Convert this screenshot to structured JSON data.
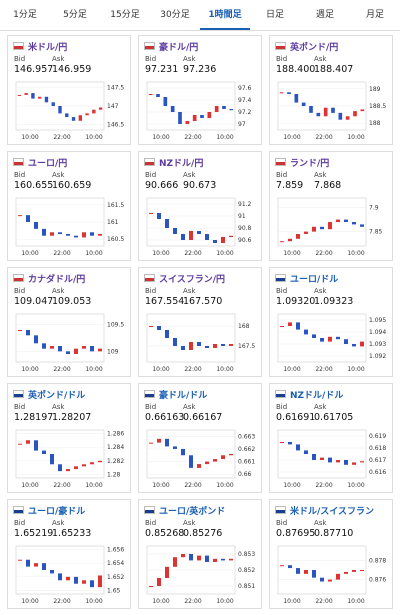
{
  "tabs": [
    "1分足",
    "5分足",
    "15分足",
    "30分足",
    "1時間足",
    "日足",
    "週足",
    "月足"
  ],
  "active_tab": 4,
  "labels": {
    "bid": "Bid",
    "ask": "Ask"
  },
  "x_labels": [
    "10:00",
    "22:00",
    "10:00"
  ],
  "cards": [
    {
      "title": "米ドル/円",
      "bid": "146.957",
      "ask": "146.959",
      "ylim": [
        146.35,
        147.65
      ],
      "yticks": [
        147.5,
        147,
        146.5
      ],
      "closes": [
        147.3,
        147.35,
        147.2,
        147.25,
        147.1,
        147.0,
        146.8,
        146.7,
        146.6,
        146.75,
        146.8,
        146.9,
        146.96
      ]
    },
    {
      "title": "豪ドル/円",
      "bid": "97.231",
      "ask": "97.236",
      "ylim": [
        96.9,
        97.7
      ],
      "yticks": [
        97.6,
        97.4,
        97.2,
        97
      ],
      "closes": [
        97.5,
        97.45,
        97.3,
        97.2,
        97.0,
        97.05,
        97.15,
        97.1,
        97.2,
        97.3,
        97.25,
        97.23
      ]
    },
    {
      "title": "英ポンド/円",
      "bid": "188.400",
      "ask": "188.407",
      "ylim": [
        187.8,
        189.2
      ],
      "yticks": [
        189,
        188.5,
        188
      ],
      "closes": [
        188.9,
        188.85,
        188.6,
        188.5,
        188.3,
        188.2,
        188.45,
        188.3,
        188.1,
        188.2,
        188.35,
        188.4
      ]
    },
    {
      "title": "ユーロ/円",
      "bid": "160.655",
      "ask": "160.659",
      "ylim": [
        160.3,
        161.7
      ],
      "yticks": [
        161.5,
        161,
        160.5
      ],
      "closes": [
        161.2,
        161.0,
        160.8,
        160.6,
        160.7,
        160.65,
        160.6,
        160.55,
        160.7,
        160.6,
        160.65
      ]
    },
    {
      "title": "NZドル/円",
      "bid": "90.666",
      "ask": "90.673",
      "ylim": [
        90.5,
        91.3
      ],
      "yticks": [
        91.2,
        91,
        90.8,
        90.6
      ],
      "closes": [
        91.05,
        90.95,
        90.8,
        90.7,
        90.6,
        90.75,
        90.7,
        90.6,
        90.55,
        90.65,
        90.67
      ]
    },
    {
      "title": "ランド/円",
      "bid": "7.859",
      "ask": "7.868",
      "ylim": [
        7.82,
        7.92
      ],
      "yticks": [
        7.9,
        7.85
      ],
      "closes": [
        7.83,
        7.835,
        7.845,
        7.85,
        7.86,
        7.855,
        7.87,
        7.875,
        7.87,
        7.865,
        7.86
      ]
    },
    {
      "title": "カナダドル/円",
      "bid": "109.047",
      "ask": "109.053",
      "ylim": [
        108.8,
        109.7
      ],
      "yticks": [
        109.5,
        109
      ],
      "closes": [
        109.4,
        109.3,
        109.15,
        109.05,
        109.1,
        109.0,
        108.95,
        109.05,
        109.1,
        109.0,
        109.05
      ]
    },
    {
      "title": "スイスフラン/円",
      "bid": "167.554",
      "ask": "167.570",
      "ylim": [
        167.1,
        168.3
      ],
      "yticks": [
        168,
        167.5
      ],
      "closes": [
        168.0,
        167.9,
        167.7,
        167.5,
        167.4,
        167.6,
        167.5,
        167.45,
        167.55,
        167.5,
        167.55
      ]
    },
    {
      "title": "ユーロ/ドル",
      "bid": "1.09320",
      "ask": "1.09323",
      "ylim": [
        1.0915,
        1.0955
      ],
      "yticks": [
        1.095,
        1.094,
        1.093,
        1.092
      ],
      "closes": [
        1.0945,
        1.0948,
        1.0942,
        1.0938,
        1.0935,
        1.0932,
        1.0936,
        1.0934,
        1.093,
        1.0928,
        1.0932
      ]
    },
    {
      "title": "英ポンド/ドル",
      "bid": "1.28197",
      "ask": "1.28207",
      "ylim": [
        1.2795,
        1.2865
      ],
      "yticks": [
        1.286,
        1.284,
        1.282,
        1.28
      ],
      "closes": [
        1.2845,
        1.285,
        1.2835,
        1.283,
        1.2815,
        1.2805,
        1.2808,
        1.2812,
        1.2815,
        1.2818,
        1.282
      ]
    },
    {
      "title": "豪ドル/ドル",
      "bid": "0.66163",
      "ask": "0.66167",
      "ylim": [
        0.6597,
        0.6635
      ],
      "yticks": [
        0.663,
        0.662,
        0.661,
        0.66
      ],
      "closes": [
        0.6625,
        0.6628,
        0.6622,
        0.662,
        0.6615,
        0.6605,
        0.6608,
        0.661,
        0.6612,
        0.6615,
        0.6616
      ]
    },
    {
      "title": "NZドル/ドル",
      "bid": "0.61691",
      "ask": "0.61705",
      "ylim": [
        0.6155,
        0.6195
      ],
      "yticks": [
        0.619,
        0.618,
        0.617,
        0.616
      ],
      "closes": [
        0.6185,
        0.6183,
        0.6178,
        0.6175,
        0.617,
        0.6172,
        0.6168,
        0.617,
        0.6166,
        0.6168,
        0.6169
      ]
    },
    {
      "title": "ユーロ/豪ドル",
      "bid": "1.65219",
      "ask": "1.65233",
      "ylim": [
        1.6495,
        1.6565
      ],
      "yticks": [
        1.656,
        1.654,
        1.652,
        1.65
      ],
      "closes": [
        1.6545,
        1.6535,
        1.654,
        1.653,
        1.6525,
        1.6515,
        1.652,
        1.651,
        1.6515,
        1.6505,
        1.6522
      ]
    },
    {
      "title": "ユーロ/英ポンド",
      "bid": "0.85268",
      "ask": "0.85276",
      "ylim": [
        0.8505,
        0.8535
      ],
      "yticks": [
        0.853,
        0.852,
        0.851
      ],
      "closes": [
        0.851,
        0.8515,
        0.8522,
        0.8528,
        0.853,
        0.8526,
        0.8529,
        0.8525,
        0.8527,
        0.8526,
        0.8527
      ]
    },
    {
      "title": "米ドル/スイスフラン",
      "bid": "0.87695",
      "ask": "0.87710",
      "ylim": [
        0.8745,
        0.8795
      ],
      "yticks": [
        0.878,
        0.876
      ],
      "closes": [
        0.8775,
        0.8772,
        0.8766,
        0.877,
        0.8762,
        0.8758,
        0.876,
        0.8766,
        0.8768,
        0.877,
        0.877
      ]
    }
  ]
}
